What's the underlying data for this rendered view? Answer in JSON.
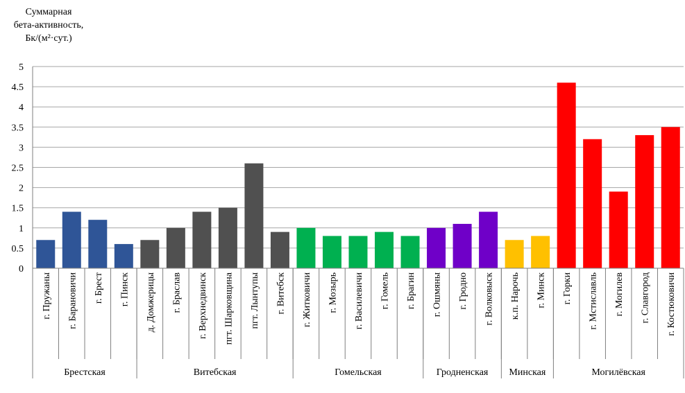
{
  "chart_data": {
    "type": "bar",
    "ylabel_lines": [
      "Суммарная",
      "бета-активность,",
      "Бк/(м²·сут.)"
    ],
    "ylim": [
      0,
      5
    ],
    "yticks": [
      "0",
      "0.5",
      "1",
      "1.5",
      "2",
      "2.5",
      "3",
      "3.5",
      "4",
      "4.5",
      "5"
    ],
    "grid": true,
    "categories": [
      "г. Пружаны",
      "г. Барановичи",
      "г. Брест",
      "г. Пинск",
      "д. Домжерицы",
      "г. Браслав",
      "г. Верхнедвинск",
      "пгт. Шарковщина",
      "пгт. Лынтупы",
      "г. Витебск",
      "г. Житковичи",
      "г. Мозырь",
      "г. Василевичи",
      "г. Гомель",
      "г. Брагин",
      "г. Ошмяны",
      "г. Гродно",
      "г. Волковыск",
      "к.п. Нарочь",
      "г. Минск",
      "г. Горки",
      "г. Мстиславль",
      "г. Могилев",
      "г. Славгород",
      "г. Костюковичи"
    ],
    "values": [
      0.7,
      1.4,
      1.2,
      0.6,
      0.7,
      1.0,
      1.4,
      1.5,
      2.6,
      0.9,
      1.0,
      0.8,
      0.8,
      0.9,
      0.8,
      1.0,
      1.1,
      1.4,
      0.7,
      0.8,
      4.6,
      3.2,
      1.9,
      3.3,
      3.5
    ],
    "groups": [
      {
        "name": "Брестская",
        "start": 0,
        "count": 4,
        "color": "#2f5597"
      },
      {
        "name": "Витебская",
        "start": 4,
        "count": 6,
        "color": "#505050"
      },
      {
        "name": "Гомельская",
        "start": 10,
        "count": 5,
        "color": "#00b050"
      },
      {
        "name": "Гродненская",
        "start": 15,
        "count": 3,
        "color": "#6f00c8"
      },
      {
        "name": "Минская",
        "start": 18,
        "count": 2,
        "color": "#ffc000"
      },
      {
        "name": "Могилёвская",
        "start": 20,
        "count": 5,
        "color": "#ff0000"
      }
    ]
  }
}
